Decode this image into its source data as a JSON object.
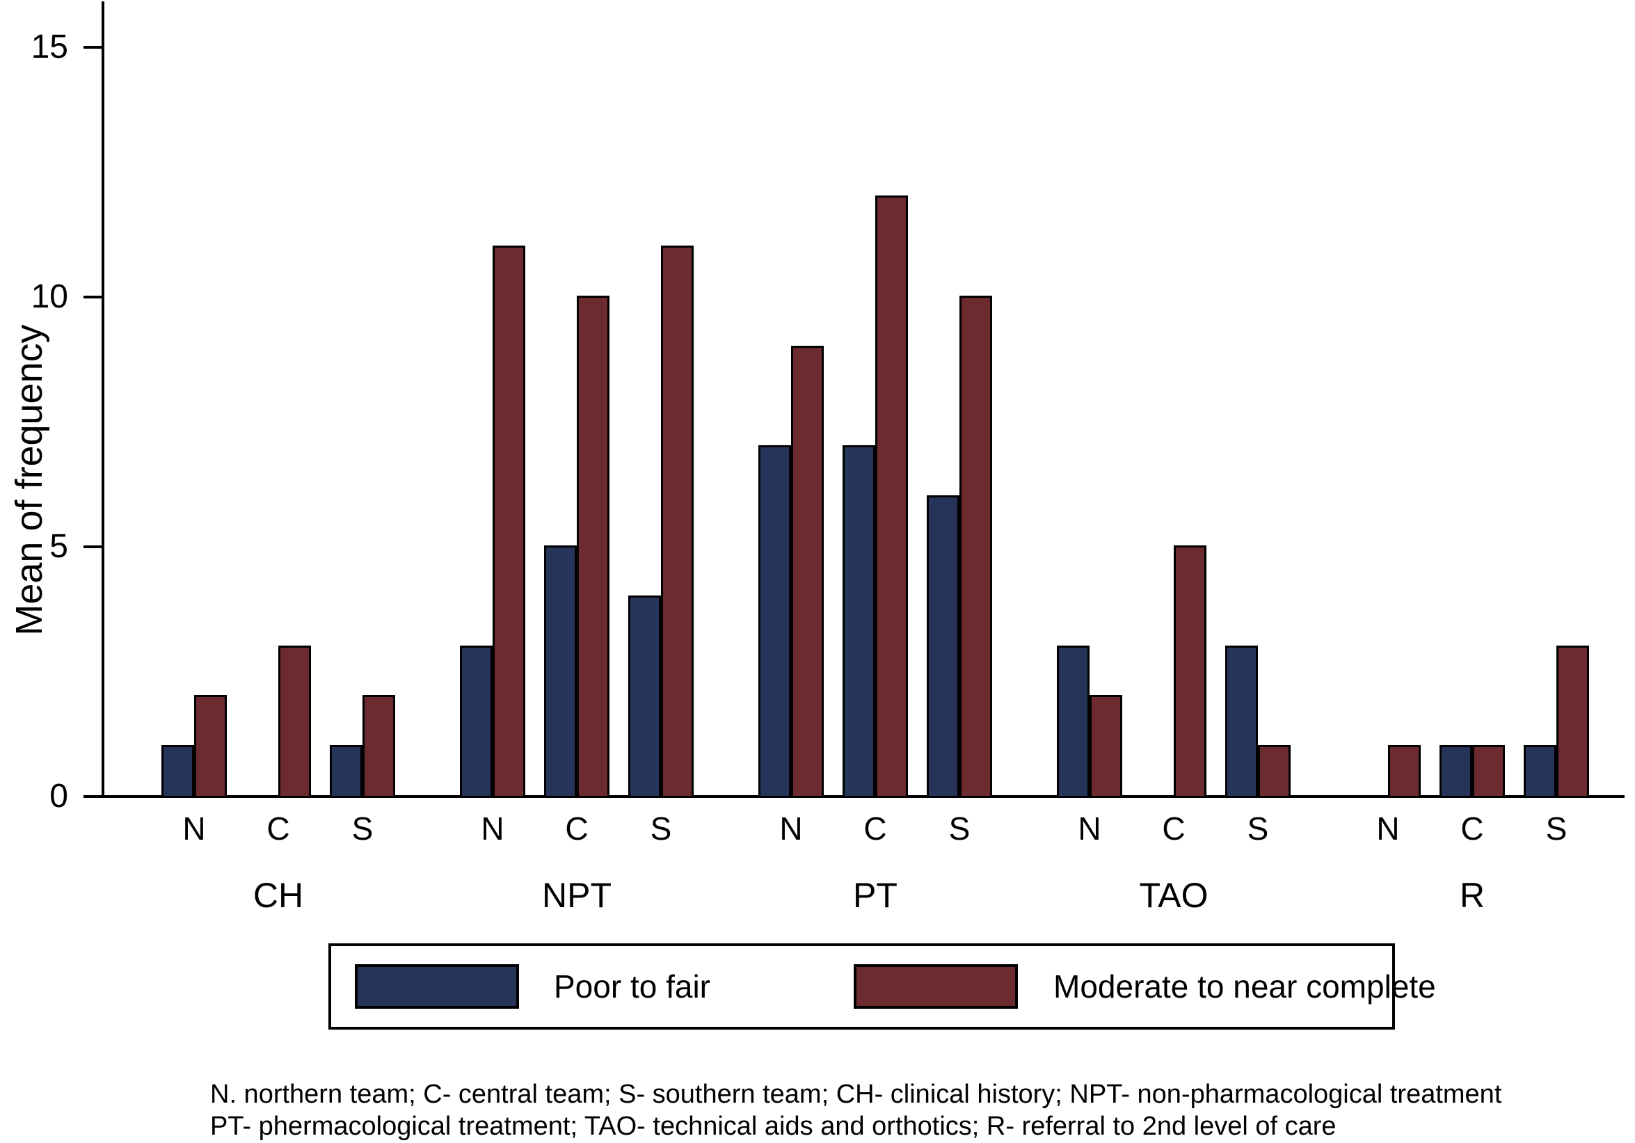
{
  "chart_data": {
    "type": "bar",
    "title": "",
    "xlabel": "",
    "ylabel": "Mean of frequency",
    "ylim": [
      0,
      15.9
    ],
    "yticks": [
      0,
      5,
      10,
      15
    ],
    "grid": false,
    "legend_position": "bottom",
    "groups": [
      "CH",
      "NPT",
      "PT",
      "TAO",
      "R"
    ],
    "subcategories": [
      "N",
      "C",
      "S"
    ],
    "series": [
      {
        "name": "Poor to fair",
        "color": "#273459",
        "values": [
          [
            1,
            0,
            1
          ],
          [
            3,
            5,
            4
          ],
          [
            7,
            7,
            6
          ],
          [
            3,
            0,
            3
          ],
          [
            0,
            1,
            1
          ]
        ]
      },
      {
        "name": "Moderate to near complete",
        "color": "#6b2b2f",
        "values": [
          [
            2,
            3,
            2
          ],
          [
            11,
            10,
            11
          ],
          [
            9,
            12,
            10
          ],
          [
            2,
            5,
            1
          ],
          [
            1,
            1,
            3
          ]
        ]
      }
    ]
  },
  "footnote": {
    "line1": "N. northern team; C- central team; S- southern team; CH- clinical history; NPT- non-pharmacological treatment",
    "line2": "PT- phermacological treatment; TAO- technical aids and orthotics; R- referral to 2nd level of care"
  }
}
